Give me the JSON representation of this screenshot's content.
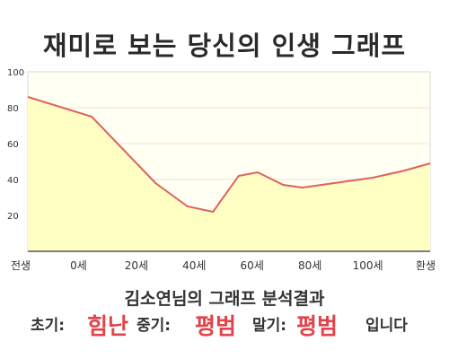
{
  "title": "재미로 보는 당신의 인생 그래프",
  "subtitle": "김소연님의 그래프 분석결과",
  "result": {
    "early_label": "초기:",
    "early_value": "힘난",
    "mid_label": "중기:",
    "mid_value": "평범",
    "late_label": "말기:",
    "late_value": "평범",
    "suffix": "입니다"
  },
  "colors": {
    "line": "#e0605f",
    "fill": "#ffffc4",
    "plot_bg": "#fffff2",
    "accent": "#e0444a"
  },
  "chart_data": {
    "type": "area",
    "title": "재미로 보는 당신의 인생 그래프",
    "xlabel": "",
    "ylabel": "",
    "x_tick_labels": [
      "전생",
      "0세",
      "20세",
      "40세",
      "60세",
      "80세",
      "100세",
      "환생"
    ],
    "y_ticks": [
      20,
      40,
      60,
      80,
      100
    ],
    "ylim": [
      0,
      100
    ],
    "grid": true,
    "series": [
      {
        "points": [
          [
            -20,
            86
          ],
          [
            0,
            75
          ],
          [
            20,
            38
          ],
          [
            30,
            25
          ],
          [
            38,
            22
          ],
          [
            46,
            42
          ],
          [
            52,
            44
          ],
          [
            60,
            37
          ],
          [
            66,
            35.5
          ],
          [
            78,
            38.5
          ],
          [
            88,
            41
          ],
          [
            98,
            45
          ],
          [
            106,
            49
          ]
        ]
      }
    ]
  }
}
